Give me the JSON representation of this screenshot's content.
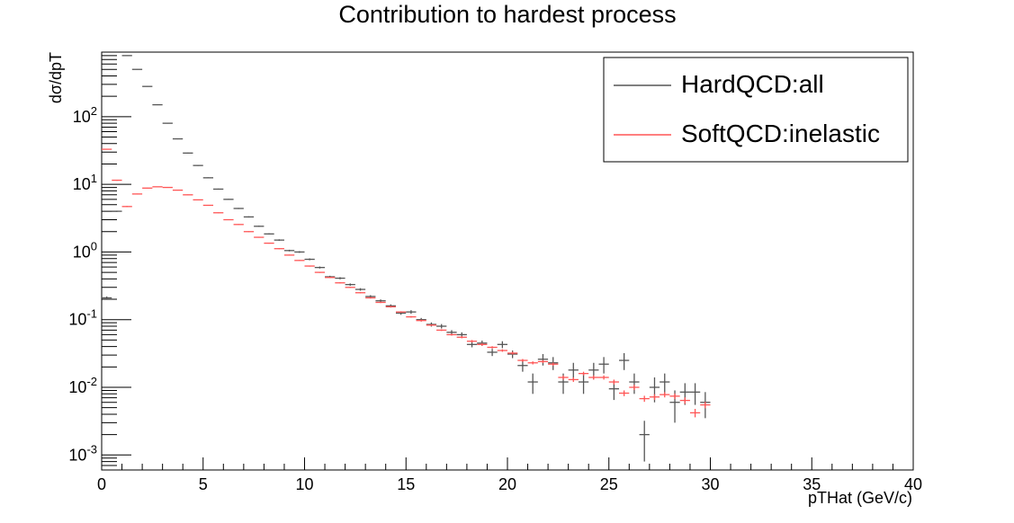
{
  "chart_data": {
    "type": "scatter",
    "title": "Contribution to hardest process",
    "xlabel": "pTHat (GeV/c)",
    "ylabel": "dσ/dpT",
    "xlim": [
      0,
      40
    ],
    "ylim": [
      0.0006,
      900
    ],
    "y_scale": "log",
    "grid": false,
    "legend_position": "top-right",
    "x_ticks": [
      "0",
      "5",
      "10",
      "15",
      "20",
      "25",
      "30",
      "35",
      "40"
    ],
    "y_ticks": [
      {
        "base": "10",
        "exp": "2",
        "value": 100
      },
      {
        "base": "10",
        "exp": "1",
        "value": 10
      },
      {
        "base": "10",
        "exp": "0",
        "value": 1
      },
      {
        "base": "10",
        "exp": "-1",
        "value": 0.1
      },
      {
        "base": "10",
        "exp": "-2",
        "value": 0.01
      },
      {
        "base": "10",
        "exp": "-3",
        "value": 0.001
      }
    ],
    "bin_width": 0.5,
    "series": [
      {
        "name": "HardQCD:all",
        "color": "#555555",
        "x": [
          0.25,
          0.75,
          1.25,
          1.75,
          2.25,
          2.75,
          3.25,
          3.75,
          4.25,
          4.75,
          5.25,
          5.75,
          6.25,
          6.75,
          7.25,
          7.75,
          8.25,
          8.75,
          9.25,
          9.75,
          10.25,
          10.75,
          11.25,
          11.75,
          12.25,
          12.75,
          13.25,
          13.75,
          14.25,
          14.75,
          15.25,
          15.75,
          16.25,
          16.75,
          17.25,
          17.75,
          18.25,
          18.75,
          19.25,
          19.75,
          20.25,
          20.75,
          21.25,
          21.75,
          22.25,
          22.75,
          23.25,
          23.75,
          24.25,
          24.75,
          25.25,
          25.75,
          26.25,
          26.75,
          27.25,
          27.75,
          28.25,
          28.75,
          29.25,
          29.75
        ],
        "y": [
          0.21,
          4.0,
          800,
          500,
          280,
          150,
          80,
          47,
          29,
          19,
          12.5,
          8.5,
          6.0,
          4.4,
          3.3,
          2.4,
          1.85,
          1.5,
          1.05,
          1.0,
          0.78,
          0.59,
          0.43,
          0.41,
          0.33,
          0.28,
          0.22,
          0.19,
          0.16,
          0.125,
          0.13,
          0.1,
          0.085,
          0.08,
          0.065,
          0.06,
          0.043,
          0.045,
          0.033,
          0.043,
          0.031,
          0.021,
          0.012,
          0.026,
          0.023,
          0.012,
          0.018,
          0.012,
          0.018,
          0.022,
          0.0095,
          0.025,
          0.012,
          0.002,
          0.01,
          0.012,
          0.006,
          0.0085,
          0.0085,
          0.006
        ],
        "y_err": [
          0.01,
          0.08,
          8,
          5,
          3,
          2,
          1,
          0.7,
          0.4,
          0.3,
          0.2,
          0.15,
          0.1,
          0.08,
          0.07,
          0.05,
          0.04,
          0.04,
          0.03,
          0.03,
          0.025,
          0.02,
          0.015,
          0.015,
          0.013,
          0.012,
          0.01,
          0.009,
          0.008,
          0.007,
          0.008,
          0.006,
          0.006,
          0.006,
          0.005,
          0.005,
          0.004,
          0.004,
          0.004,
          0.005,
          0.004,
          0.004,
          0.004,
          0.005,
          0.005,
          0.004,
          0.005,
          0.004,
          0.005,
          0.006,
          0.003,
          0.007,
          0.004,
          0.0012,
          0.004,
          0.004,
          0.003,
          0.003,
          0.003,
          0.0025
        ]
      },
      {
        "name": "SoftQCD:inelastic",
        "color": "#ff5555",
        "x": [
          0.25,
          0.75,
          1.25,
          1.75,
          2.25,
          2.75,
          3.25,
          3.75,
          4.25,
          4.75,
          5.25,
          5.75,
          6.25,
          6.75,
          7.25,
          7.75,
          8.25,
          8.75,
          9.25,
          9.75,
          10.25,
          10.75,
          11.25,
          11.75,
          12.25,
          12.75,
          13.25,
          13.75,
          14.25,
          14.75,
          15.25,
          15.75,
          16.25,
          16.75,
          17.25,
          17.75,
          18.25,
          18.75,
          19.25,
          19.75,
          20.25,
          20.75,
          21.25,
          21.75,
          22.25,
          22.75,
          23.25,
          23.75,
          24.25,
          24.75,
          25.25,
          25.75,
          26.25,
          26.75,
          27.25,
          27.75,
          28.25,
          28.75,
          29.25,
          29.75
        ],
        "y": [
          33,
          11.5,
          4.7,
          7.2,
          8.8,
          9.2,
          9.0,
          8.2,
          7.0,
          5.9,
          4.9,
          3.8,
          3.0,
          2.55,
          2.0,
          1.65,
          1.35,
          1.12,
          0.9,
          0.75,
          0.62,
          0.5,
          0.42,
          0.35,
          0.3,
          0.25,
          0.21,
          0.18,
          0.155,
          0.13,
          0.11,
          0.097,
          0.083,
          0.07,
          0.06,
          0.055,
          0.048,
          0.043,
          0.039,
          0.035,
          0.032,
          0.025,
          0.023,
          0.024,
          0.022,
          0.014,
          0.013,
          0.016,
          0.014,
          0.014,
          0.012,
          0.0082,
          0.01,
          0.0068,
          0.0072,
          0.0078,
          0.0074,
          0.0064,
          0.0042,
          0.0055
        ],
        "y_err": [
          0.3,
          0.2,
          0.1,
          0.1,
          0.1,
          0.1,
          0.1,
          0.1,
          0.08,
          0.07,
          0.06,
          0.05,
          0.04,
          0.035,
          0.03,
          0.025,
          0.02,
          0.02,
          0.015,
          0.013,
          0.011,
          0.009,
          0.008,
          0.007,
          0.006,
          0.005,
          0.005,
          0.004,
          0.004,
          0.003,
          0.003,
          0.003,
          0.002,
          0.002,
          0.002,
          0.002,
          0.002,
          0.002,
          0.0015,
          0.0015,
          0.0015,
          0.0012,
          0.0012,
          0.0012,
          0.0012,
          0.001,
          0.001,
          0.001,
          0.001,
          0.001,
          0.001,
          0.0008,
          0.0009,
          0.0007,
          0.0007,
          0.0007,
          0.0007,
          0.0007,
          0.0006,
          0.0006
        ]
      }
    ]
  }
}
